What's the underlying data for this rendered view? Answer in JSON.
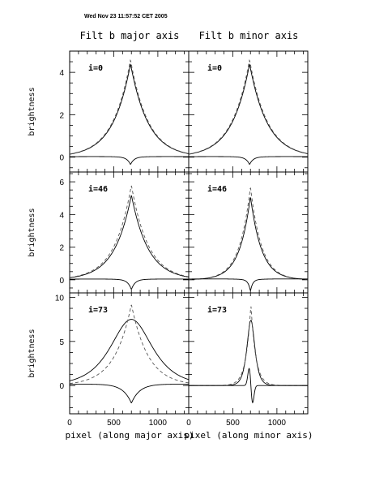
{
  "header": {
    "timestamp": "Wed Nov 23 11:57:52 CET 2005",
    "col_titles": [
      "Filt b major axis",
      "Filt b minor axis"
    ]
  },
  "axes": {
    "ylabel": "brightness",
    "xlabels": [
      "pixel (along major axis)",
      "pixel (along minor axis)"
    ],
    "xticks": [
      0,
      500,
      1000
    ],
    "xlim": [
      0,
      1350
    ]
  },
  "chart_data": [
    {
      "type": "line",
      "title": "i=0",
      "col": 0,
      "row": 0,
      "ylim": [
        -0.7,
        5.0
      ],
      "yticks": [
        0,
        2,
        4
      ],
      "grid": false,
      "series": [
        {
          "style": "solid",
          "center": 690,
          "peak": 4.4,
          "width": 200,
          "shape": "cusp"
        },
        {
          "style": "dashed",
          "center": 690,
          "peak": 4.6,
          "width": 200,
          "shape": "cusp"
        },
        {
          "style": "solid",
          "center": 690,
          "peak": -0.35,
          "width": 40,
          "shape": "residual"
        }
      ]
    },
    {
      "type": "line",
      "title": "i=0",
      "col": 1,
      "row": 0,
      "ylim": [
        -0.7,
        5.0
      ],
      "yticks": [
        0,
        2,
        4
      ],
      "grid": false,
      "series": [
        {
          "style": "solid",
          "center": 690,
          "peak": 4.4,
          "width": 200,
          "shape": "cusp"
        },
        {
          "style": "dashed",
          "center": 690,
          "peak": 4.6,
          "width": 200,
          "shape": "cusp"
        },
        {
          "style": "solid",
          "center": 690,
          "peak": -0.35,
          "width": 40,
          "shape": "residual"
        }
      ]
    },
    {
      "type": "line",
      "title": "i=46",
      "col": 0,
      "row": 1,
      "ylim": [
        -0.8,
        6.6
      ],
      "yticks": [
        0,
        2,
        4,
        6
      ],
      "grid": false,
      "series": [
        {
          "style": "solid",
          "center": 700,
          "peak": 5.2,
          "width": 190,
          "shape": "cusp"
        },
        {
          "style": "dashed",
          "center": 700,
          "peak": 5.8,
          "width": 190,
          "shape": "cusp"
        },
        {
          "style": "solid",
          "center": 700,
          "peak": -0.6,
          "width": 40,
          "shape": "residual"
        }
      ]
    },
    {
      "type": "line",
      "title": "i=46",
      "col": 1,
      "row": 1,
      "ylim": [
        -0.8,
        6.6
      ],
      "yticks": [
        0,
        2,
        4,
        6
      ],
      "grid": false,
      "series": [
        {
          "style": "solid",
          "center": 700,
          "peak": 5.1,
          "width": 125,
          "shape": "cusp"
        },
        {
          "style": "dashed",
          "center": 700,
          "peak": 5.7,
          "width": 125,
          "shape": "cusp"
        },
        {
          "style": "solid",
          "center": 700,
          "peak": -0.7,
          "width": 25,
          "shape": "residual"
        }
      ]
    },
    {
      "type": "line",
      "title": "i=73",
      "col": 0,
      "row": 2,
      "ylim": [
        -3.2,
        10.5
      ],
      "yticks": [
        0,
        5,
        10
      ],
      "grid": false,
      "series": [
        {
          "style": "solid",
          "center": 700,
          "peak": 7.5,
          "width": 210,
          "shape": "round"
        },
        {
          "style": "dashed",
          "center": 700,
          "peak": 9.2,
          "width": 190,
          "shape": "cusp"
        },
        {
          "style": "solid",
          "center": 700,
          "peak": -2.0,
          "width": 90,
          "shape": "residual"
        }
      ]
    },
    {
      "type": "line",
      "title": "i=73",
      "col": 1,
      "row": 2,
      "ylim": [
        -3.2,
        10.5
      ],
      "yticks": [
        0,
        5,
        10
      ],
      "grid": false,
      "series": [
        {
          "style": "solid",
          "center": 705,
          "peak": 7.4,
          "width": 40,
          "shape": "round"
        },
        {
          "style": "dashed",
          "center": 705,
          "peak": 9.2,
          "width": 55,
          "shape": "cusp"
        },
        {
          "style": "solid",
          "center": 705,
          "peak": -2.0,
          "width": 20,
          "shape": "derivative"
        }
      ]
    }
  ]
}
